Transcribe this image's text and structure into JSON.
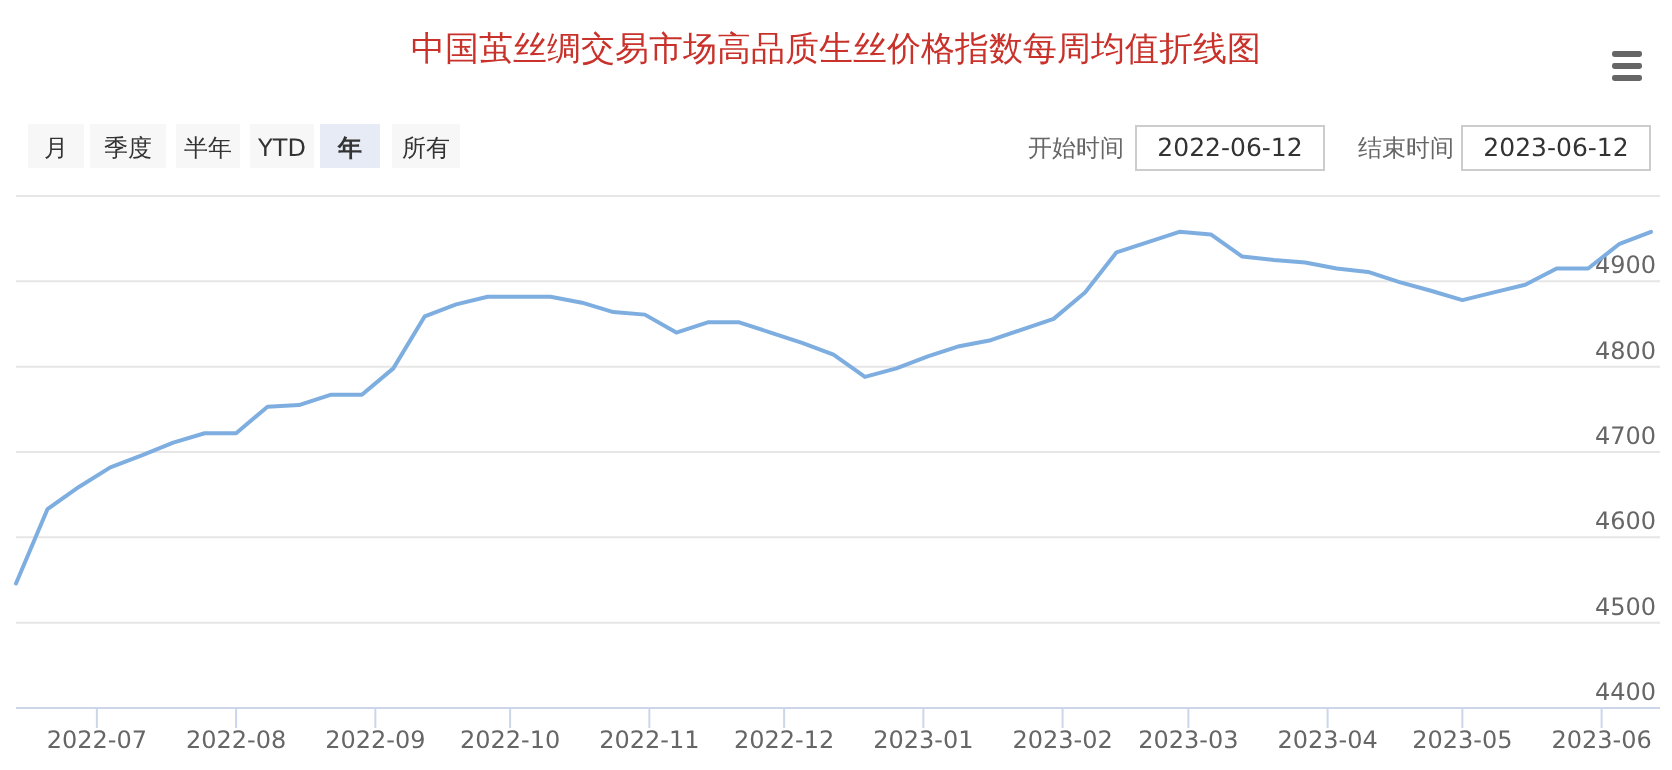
{
  "chart_data": {
    "type": "line",
    "title": "中国茧丝绸交易市场高品质生丝价格指数每周均值折线图",
    "annotations": [
      "月",
      "季度",
      "半年",
      "YTD",
      "年",
      "所有",
      "开始时间",
      "2022-06-12",
      "结束时间",
      "2023-06-12"
    ],
    "x": [
      "2022-06-13",
      "2022-06-20",
      "2022-06-27",
      "2022-07-04",
      "2022-07-11",
      "2022-07-18",
      "2022-07-25",
      "2022-08-01",
      "2022-08-08",
      "2022-08-15",
      "2022-08-22",
      "2022-08-29",
      "2022-09-05",
      "2022-09-12",
      "2022-09-19",
      "2022-09-26",
      "2022-10-10",
      "2022-10-17",
      "2022-10-24",
      "2022-10-31",
      "2022-11-07",
      "2022-11-14",
      "2022-11-21",
      "2022-11-28",
      "2022-12-05",
      "2022-12-12",
      "2022-12-19",
      "2022-12-26",
      "2023-01-02",
      "2023-01-09",
      "2023-01-16",
      "2023-01-30",
      "2023-02-06",
      "2023-02-13",
      "2023-02-20",
      "2023-02-27",
      "2023-03-06",
      "2023-03-13",
      "2023-03-20",
      "2023-03-27",
      "2023-04-03",
      "2023-04-10",
      "2023-04-17",
      "2023-04-24",
      "2023-05-01",
      "2023-05-08",
      "2023-05-15",
      "2023-05-22",
      "2023-05-29",
      "2023-06-05",
      "2023-06-12"
    ],
    "series": [
      {
        "color": "#7eaee0",
        "values": [
          4546,
          4633,
          4659,
          4682,
          4696,
          4711,
          4722,
          4722,
          4753,
          4755,
          4767,
          4767,
          4798,
          4859,
          4873,
          4882,
          4882,
          4875,
          4864,
          4861,
          4840,
          4852,
          4852,
          4840,
          4828,
          4814,
          4788,
          4798,
          4812,
          4824,
          4831,
          4856,
          4887,
          4934,
          4946,
          4958,
          4955,
          4929,
          4925,
          4922,
          4915,
          4911,
          4899,
          4889,
          4878,
          4887,
          4896,
          4915,
          4915,
          4944,
          4958
        ]
      }
    ],
    "xlim": [
      "2022-06-13",
      "2023-06-14"
    ],
    "xticks": [
      "2022-07",
      "2022-08",
      "2022-09",
      "2022-10",
      "2022-11",
      "2022-12",
      "2023-01",
      "2023-02",
      "2023-03",
      "2023-04",
      "2023-05",
      "2023-06"
    ],
    "ylim": [
      4400,
      5000
    ],
    "yticks": [
      4400,
      4500,
      4600,
      4700,
      4800,
      4900,
      {
        "value": 5000,
        "label": null
      }
    ],
    "grid": "y",
    "marker": "none",
    "line_style": "solid"
  }
}
